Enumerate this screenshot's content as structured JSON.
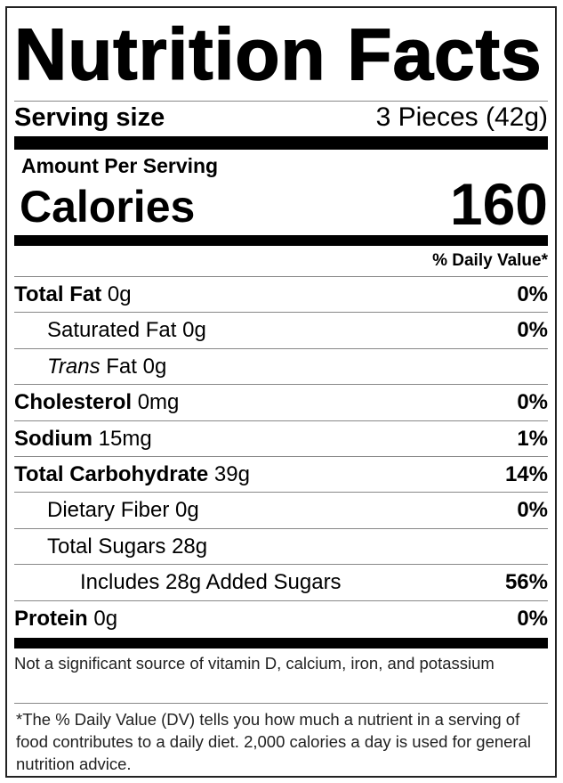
{
  "title": "Nutrition Facts",
  "serving_size": {
    "label": "Serving size",
    "value": "3 Pieces (42g)"
  },
  "amount_per_serving": "Amount Per Serving",
  "calories": {
    "label": "Calories",
    "value": "160"
  },
  "daily_value_header": "% Daily Value*",
  "nutrients": [
    {
      "name": "Total Fat",
      "amount": "0g",
      "dv": "0%",
      "bold": true,
      "indent": 0
    },
    {
      "name": "Saturated Fat",
      "amount": "0g",
      "dv": "0%",
      "bold": false,
      "indent": 1
    },
    {
      "name": "Trans",
      "name_rest": "Fat",
      "amount": "0g",
      "dv": "",
      "bold": false,
      "indent": 1,
      "italic": true
    },
    {
      "name": "Cholesterol",
      "amount": "0mg",
      "dv": "0%",
      "bold": true,
      "indent": 0
    },
    {
      "name": "Sodium",
      "amount": "15mg",
      "dv": "1%",
      "bold": true,
      "indent": 0
    },
    {
      "name": "Total Carbohydrate",
      "amount": "39g",
      "dv": "14%",
      "bold": true,
      "indent": 0
    },
    {
      "name": "Dietary Fiber",
      "amount": "0g",
      "dv": "0%",
      "bold": false,
      "indent": 1
    },
    {
      "name": "Total Sugars",
      "amount": "28g",
      "dv": "",
      "bold": false,
      "indent": 1
    },
    {
      "name": "Includes 28g Added Sugars",
      "amount": "",
      "dv": "56%",
      "bold": false,
      "indent": 2
    },
    {
      "name": "Protein",
      "amount": "0g",
      "dv": "0%",
      "bold": true,
      "indent": 0
    }
  ],
  "not_significant": "Not a significant source of vitamin D, calcium, iron, and potassium",
  "footnote": "*The % Daily Value (DV) tells you how much a nutrient in a serving of food contributes to a daily diet. 2,000 calories a day is used for general nutrition advice."
}
